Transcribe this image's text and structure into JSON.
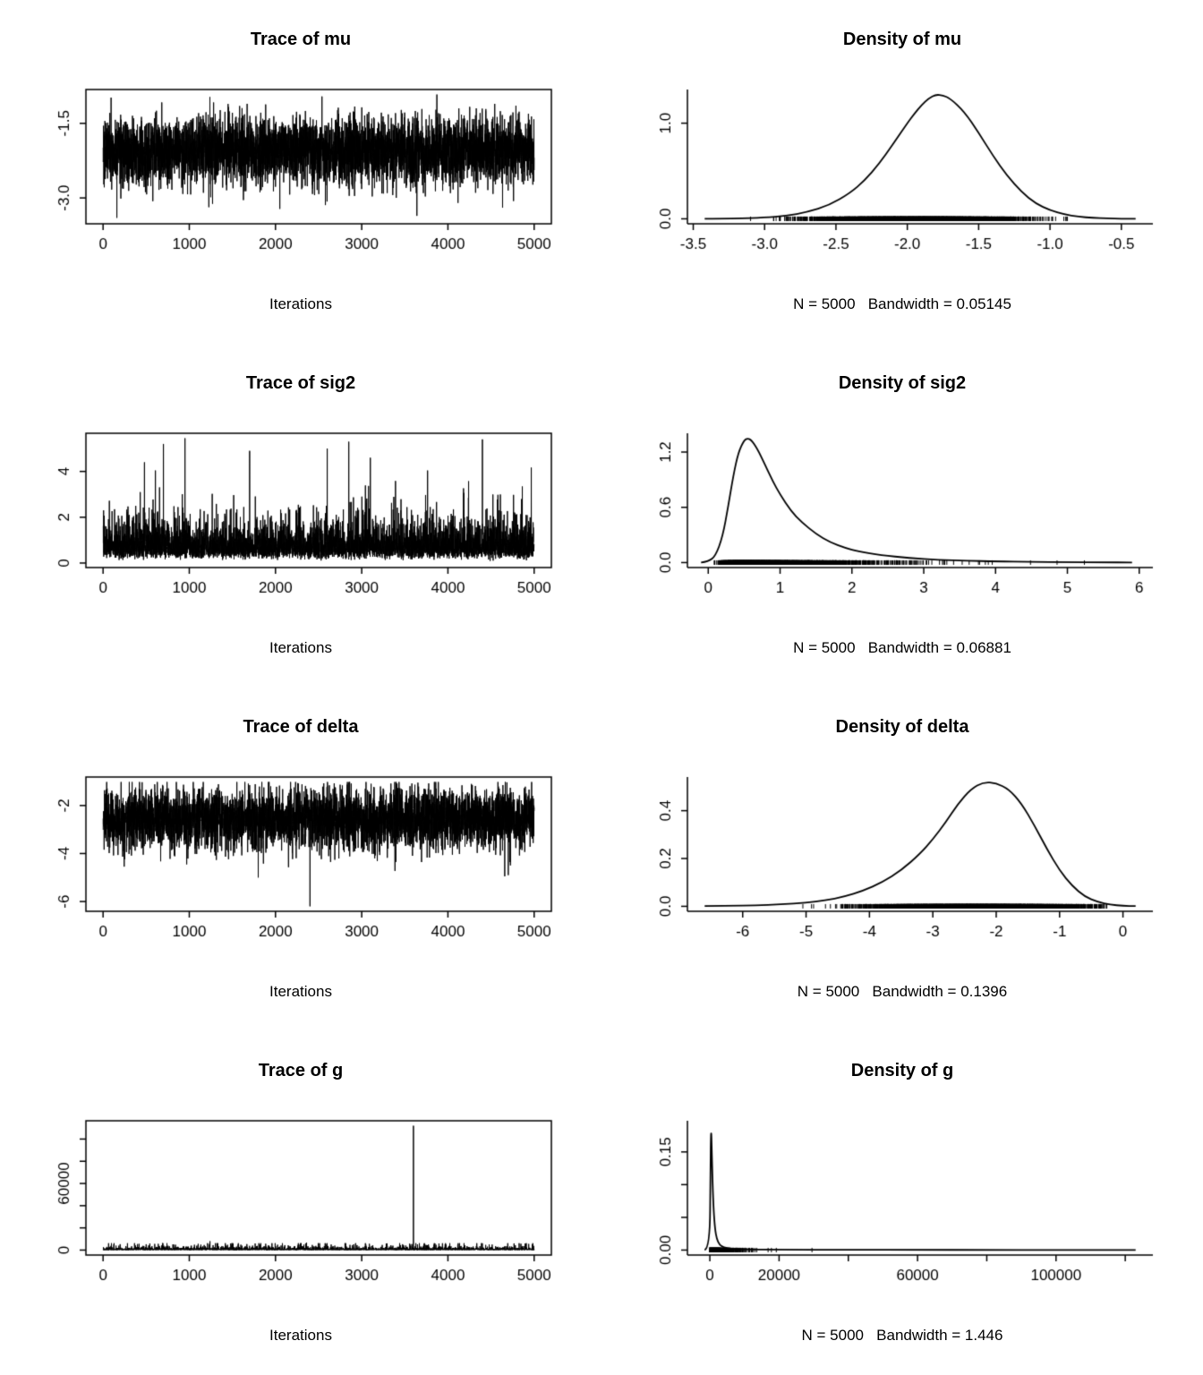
{
  "page": {
    "background": "#ffffff",
    "foreground": "#000000"
  },
  "layout": {
    "rows": 4,
    "cols": 2,
    "description": "R coda MCMC diagnostics: trace and density plots for mu, sig2, delta, g"
  },
  "chart_data": [
    {
      "id": "trace-mu",
      "kind": "trace",
      "type": "line",
      "title": "Trace of mu",
      "xlabel": "Iterations",
      "xlim": [
        1,
        5000
      ],
      "ylim": [
        -3.42,
        -0.92
      ],
      "xticks": {
        "values": [
          0,
          1000,
          2000,
          3000,
          4000,
          5000
        ],
        "labels": [
          "0",
          "1000",
          "2000",
          "3000",
          "4000",
          "5000"
        ]
      },
      "yticks": {
        "values": [
          -3.0,
          -1.5
        ],
        "labels": [
          "-3.0",
          "-1.5"
        ]
      },
      "series": {
        "n": 5000,
        "dist": "normal",
        "center": -2.05,
        "sd": 0.33,
        "min": -3.42,
        "max": -0.92,
        "seed": 101,
        "spikes": [
          [
            160,
            -3.4
          ],
          [
            2050,
            -3.22
          ],
          [
            3640,
            -3.36
          ]
        ]
      }
    },
    {
      "id": "density-mu",
      "kind": "density",
      "type": "line",
      "title": "Density of mu",
      "xlabel": "N = 5000   Bandwidth = 0.05145",
      "N": 5000,
      "bandwidth": 0.05145,
      "xlim": [
        -3.42,
        -0.4
      ],
      "ylim": [
        0,
        1.3
      ],
      "xticks": {
        "values": [
          -3.5,
          -3.0,
          -2.5,
          -2.0,
          -1.5,
          -1.0,
          -0.5
        ],
        "labels": [
          "-3.5",
          "-3.0",
          "-2.5",
          "-2.0",
          "-1.5",
          "-1.0",
          "-0.5"
        ]
      },
      "yticks": {
        "values": [
          0.0,
          1.0
        ],
        "labels": [
          "0.0",
          "1.0"
        ]
      },
      "curve": {
        "x": [
          -3.42,
          -3.2,
          -3.0,
          -2.85,
          -2.7,
          -2.55,
          -2.4,
          -2.3,
          -2.2,
          -2.1,
          -2.0,
          -1.95,
          -1.9,
          -1.85,
          -1.8,
          -1.75,
          -1.7,
          -1.6,
          -1.5,
          -1.4,
          -1.3,
          -1.2,
          -1.1,
          -1.0,
          -0.9,
          -0.8,
          -0.7,
          -0.6,
          -0.5,
          -0.4
        ],
        "y": [
          0.001,
          0.004,
          0.012,
          0.03,
          0.07,
          0.14,
          0.27,
          0.4,
          0.57,
          0.78,
          1.0,
          1.1,
          1.19,
          1.26,
          1.3,
          1.29,
          1.26,
          1.12,
          0.9,
          0.66,
          0.45,
          0.28,
          0.16,
          0.09,
          0.045,
          0.022,
          0.01,
          0.005,
          0.002,
          0.001
        ]
      },
      "rug": {
        "n": 5000,
        "dist": "normal",
        "center": -1.95,
        "sd": 0.32,
        "min": -3.42,
        "max": -0.4,
        "seed": 202
      }
    },
    {
      "id": "trace-sig2",
      "kind": "trace",
      "type": "line",
      "title": "Trace of sig2",
      "xlabel": "Iterations",
      "xlim": [
        1,
        5000
      ],
      "ylim": [
        0.02,
        5.45
      ],
      "xticks": {
        "values": [
          0,
          1000,
          2000,
          3000,
          4000,
          5000
        ],
        "labels": [
          "0",
          "1000",
          "2000",
          "3000",
          "4000",
          "5000"
        ]
      },
      "yticks": {
        "values": [
          0,
          2,
          4
        ],
        "labels": [
          "0",
          "2",
          "4"
        ]
      },
      "series": {
        "n": 5000,
        "dist": "lognormal",
        "center": -0.34,
        "sd": 0.55,
        "min": 0.02,
        "max": 5.45,
        "seed": 103,
        "spikes": [
          [
            480,
            4.4
          ],
          [
            700,
            5.2
          ],
          [
            950,
            5.45
          ],
          [
            1700,
            4.9
          ],
          [
            2600,
            5.0
          ],
          [
            2850,
            5.3
          ],
          [
            3100,
            4.6
          ],
          [
            4400,
            5.4
          ]
        ]
      }
    },
    {
      "id": "density-sig2",
      "kind": "density",
      "type": "line",
      "title": "Density of sig2",
      "xlabel": "N = 5000   Bandwidth = 0.06881",
      "N": 5000,
      "bandwidth": 0.06881,
      "xlim": [
        -0.05,
        5.95
      ],
      "ylim": [
        0,
        1.35
      ],
      "xticks": {
        "values": [
          0,
          1,
          2,
          3,
          4,
          5,
          6
        ],
        "labels": [
          "0",
          "1",
          "2",
          "3",
          "4",
          "5",
          "6"
        ]
      },
      "yticks": {
        "values": [
          0.0,
          0.6,
          1.2
        ],
        "labels": [
          "0.0",
          "0.6",
          "1.2"
        ]
      },
      "curve": {
        "x": [
          -0.1,
          0.0,
          0.1,
          0.2,
          0.28,
          0.35,
          0.42,
          0.5,
          0.55,
          0.6,
          0.68,
          0.78,
          0.9,
          1.0,
          1.15,
          1.3,
          1.5,
          1.7,
          1.9,
          2.1,
          2.4,
          2.8,
          3.2,
          3.6,
          4.0,
          4.5,
          5.0,
          5.5,
          5.9
        ],
        "y": [
          0.0,
          0.01,
          0.07,
          0.28,
          0.62,
          0.95,
          1.2,
          1.33,
          1.35,
          1.33,
          1.24,
          1.08,
          0.88,
          0.74,
          0.56,
          0.44,
          0.31,
          0.22,
          0.16,
          0.12,
          0.08,
          0.05,
          0.03,
          0.02,
          0.013,
          0.008,
          0.005,
          0.003,
          0.001
        ]
      },
      "rug": {
        "n": 5000,
        "dist": "lognormal",
        "center": -0.34,
        "sd": 0.55,
        "min": 0.02,
        "max": 5.9,
        "seed": 204
      }
    },
    {
      "id": "trace-delta",
      "kind": "trace",
      "type": "line",
      "title": "Trace of delta",
      "xlabel": "Iterations",
      "xlim": [
        1,
        5000
      ],
      "ylim": [
        -6.2,
        -1.02
      ],
      "xticks": {
        "values": [
          0,
          1000,
          2000,
          3000,
          4000,
          5000
        ],
        "labels": [
          "0",
          "1000",
          "2000",
          "3000",
          "4000",
          "5000"
        ]
      },
      "yticks": {
        "values": [
          -6,
          -4,
          -2
        ],
        "labels": [
          "-6",
          "-4",
          "-2"
        ]
      },
      "series": {
        "n": 5000,
        "dist": "normal",
        "center": -2.55,
        "sd": 0.62,
        "min": -4.95,
        "max": -1.02,
        "seed": 105,
        "spikes": [
          [
            1800,
            -5.0
          ],
          [
            2400,
            -6.2
          ],
          [
            4700,
            -4.9
          ]
        ]
      }
    },
    {
      "id": "density-delta",
      "kind": "density",
      "type": "line",
      "title": "Density of delta",
      "xlabel": "N = 5000   Bandwidth = 0.1396",
      "N": 5000,
      "bandwidth": 0.1396,
      "xlim": [
        -6.6,
        0.2
      ],
      "ylim": [
        0,
        0.52
      ],
      "xticks": {
        "values": [
          -6,
          -5,
          -4,
          -3,
          -2,
          -1,
          0
        ],
        "labels": [
          "-6",
          "-5",
          "-4",
          "-3",
          "-2",
          "-1",
          "0"
        ]
      },
      "yticks": {
        "values": [
          0.0,
          0.2,
          0.4
        ],
        "labels": [
          "0.0",
          "0.2",
          "0.4"
        ]
      },
      "curve": {
        "x": [
          -6.6,
          -6.2,
          -5.8,
          -5.4,
          -5.0,
          -4.7,
          -4.4,
          -4.1,
          -3.8,
          -3.5,
          -3.2,
          -3.0,
          -2.8,
          -2.6,
          -2.4,
          -2.2,
          -2.0,
          -1.8,
          -1.6,
          -1.4,
          -1.2,
          -1.0,
          -0.8,
          -0.6,
          -0.4,
          -0.2,
          0.0,
          0.2
        ],
        "y": [
          0.001,
          0.002,
          0.004,
          0.008,
          0.015,
          0.025,
          0.04,
          0.065,
          0.1,
          0.15,
          0.22,
          0.28,
          0.35,
          0.43,
          0.49,
          0.52,
          0.515,
          0.49,
          0.43,
          0.34,
          0.24,
          0.15,
          0.085,
          0.04,
          0.018,
          0.007,
          0.002,
          0.001
        ]
      },
      "rug": {
        "n": 5000,
        "dist": "normal",
        "center": -2.35,
        "sd": 0.78,
        "min": -6.3,
        "max": -0.25,
        "seed": 206
      }
    },
    {
      "id": "trace-g",
      "kind": "trace",
      "type": "line",
      "title": "Trace of g",
      "xlabel": "Iterations",
      "xlim": [
        1,
        5000
      ],
      "ylim": [
        10,
        112000
      ],
      "xticks": {
        "values": [
          0,
          1000,
          2000,
          3000,
          4000,
          5000
        ],
        "labels": [
          "0",
          "1000",
          "2000",
          "3000",
          "4000",
          "5000"
        ]
      },
      "yticks": {
        "values": [
          0,
          20000,
          40000,
          60000,
          80000,
          100000
        ],
        "labels": [
          "0",
          "",
          "",
          "60000",
          "",
          ""
        ]
      },
      "series": {
        "n": 5000,
        "dist": "lognormal",
        "center": 6.3,
        "sd": 1.05,
        "min": 10,
        "max": 6200,
        "seed": 107,
        "spikes": [
          [
            640,
            5600
          ],
          [
            840,
            4800
          ],
          [
            1240,
            8000
          ],
          [
            2360,
            6800
          ],
          [
            3600,
            112000
          ]
        ]
      }
    },
    {
      "id": "density-g",
      "kind": "density",
      "type": "line",
      "title": "Density of g",
      "xlabel": "N = 5000   Bandwidth = 1.446",
      "N": 5000,
      "bandwidth": 1.446,
      "xlim": [
        -1500,
        123000
      ],
      "ylim": [
        0,
        0.19
      ],
      "xticks": {
        "values": [
          0,
          20000,
          40000,
          60000,
          80000,
          100000,
          120000
        ],
        "labels": [
          "0",
          "20000",
          "",
          "60000",
          "",
          "100000",
          ""
        ]
      },
      "yticks": {
        "values": [
          0.0,
          0.05,
          0.1,
          0.15
        ],
        "labels": [
          "0.00",
          "",
          "",
          "0.15"
        ]
      },
      "curve": {
        "x": [
          -1500,
          0,
          150,
          350,
          550,
          800,
          1100,
          1500,
          2000,
          2800,
          4000,
          6000,
          10000,
          20000,
          40000,
          60000,
          80000,
          100000,
          123000
        ],
        "y": [
          0.0,
          0.003,
          0.12,
          0.19,
          0.155,
          0.1,
          0.06,
          0.032,
          0.017,
          0.008,
          0.004,
          0.002,
          0.001,
          0.0006,
          0.0004,
          0.0003,
          0.00025,
          0.0002,
          0.0001
        ]
      },
      "rug": {
        "n": 5000,
        "dist": "lognormal",
        "center": 6.3,
        "sd": 1.05,
        "min": 10,
        "max": 118000,
        "seed": 208
      }
    }
  ]
}
